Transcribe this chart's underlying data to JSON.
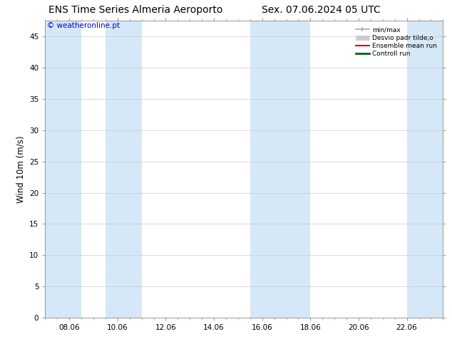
{
  "title_left": "ENS Time Series Almeria Aeroporto",
  "title_right": "Sex. 07.06.2024 05 UTC",
  "ylabel": "Wind 10m (m/s)",
  "watermark": "© weatheronline.pt",
  "watermark_color": "#0000dd",
  "ylim": [
    0,
    47.5
  ],
  "yticks": [
    0,
    5,
    10,
    15,
    20,
    25,
    30,
    35,
    40,
    45
  ],
  "xtick_labels": [
    "08.06",
    "10.06",
    "12.06",
    "14.06",
    "16.06",
    "18.06",
    "20.06",
    "22.06"
  ],
  "xtick_positions": [
    1,
    3,
    5,
    7,
    9,
    11,
    13,
    15
  ],
  "shaded_bands": [
    [
      0,
      1.5
    ],
    [
      2.5,
      4.0
    ],
    [
      8.5,
      11.0
    ],
    [
      15.0,
      16.5
    ]
  ],
  "shaded_color": "#d6e8f7",
  "background_color": "#ffffff",
  "plot_bg_color": "#ffffff",
  "grid_color": "#cccccc",
  "legend_items": [
    {
      "label": "min/max",
      "color": "#aaaaaa",
      "lw": 1.2,
      "style": "minmax"
    },
    {
      "label": "Desvio padr tilde;o",
      "color": "#cccccc",
      "lw": 5,
      "style": "thick"
    },
    {
      "label": "Ensemble mean run",
      "color": "#dd0000",
      "lw": 1.5,
      "style": "line"
    },
    {
      "label": "Controll run",
      "color": "#006600",
      "lw": 2,
      "style": "line"
    }
  ],
  "x_range": [
    0,
    16
  ],
  "title_fontsize": 10,
  "tick_fontsize": 7.5,
  "ylabel_fontsize": 8.5
}
